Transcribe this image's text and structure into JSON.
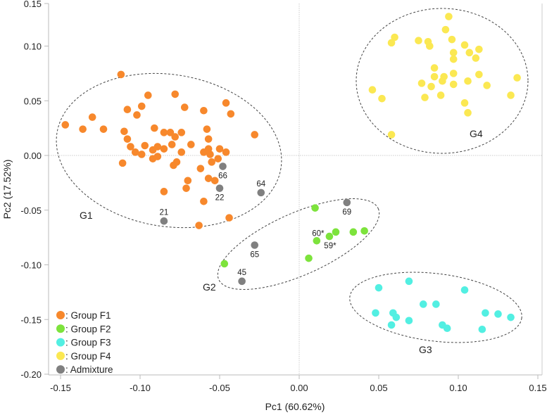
{
  "chart_data": {
    "type": "scatter",
    "title": "",
    "xlabel": "Pc1 (60.62%)",
    "ylabel": "Pc2 (17.52%)",
    "xlim": [
      -0.15,
      0.15
    ],
    "ylim": [
      -0.2,
      0.15
    ],
    "xticks": [
      "-0.15",
      "-0.10",
      "-0.05",
      "0.00",
      "0.05",
      "0.10",
      "0.15"
    ],
    "yticks": [
      "0.15",
      "0.10",
      "0.05",
      "0.00",
      "-0.05",
      "-0.10",
      "-0.15",
      "-0.20"
    ],
    "grid": false,
    "zero_lines": true,
    "legend_placement": "bottom-left",
    "series": [
      {
        "name": ": Group F1",
        "color": "#F7882C",
        "points": [
          [
            -0.112,
            0.074
          ],
          [
            -0.095,
            0.055
          ],
          [
            -0.099,
            0.045
          ],
          [
            -0.108,
            0.042
          ],
          [
            -0.102,
            0.037
          ],
          [
            -0.13,
            0.035
          ],
          [
            -0.147,
            0.028
          ],
          [
            -0.136,
            0.024
          ],
          [
            -0.123,
            0.024
          ],
          [
            -0.11,
            0.022
          ],
          [
            -0.091,
            0.025
          ],
          [
            -0.108,
            0.015
          ],
          [
            -0.097,
            0.009
          ],
          [
            -0.106,
            0.008
          ],
          [
            -0.089,
            0.008
          ],
          [
            -0.103,
            0.003
          ],
          [
            -0.099,
            0.001
          ],
          [
            -0.092,
            0.005
          ],
          [
            -0.092,
            -0.003
          ],
          [
            -0.089,
            -0.001
          ],
          [
            -0.111,
            -0.007
          ],
          [
            -0.078,
            0.056
          ],
          [
            -0.072,
            0.044
          ],
          [
            -0.046,
            0.048
          ],
          [
            -0.06,
            0.041
          ],
          [
            -0.043,
            0.038
          ],
          [
            -0.085,
            0.021
          ],
          [
            -0.081,
            0.021
          ],
          [
            -0.078,
            0.017
          ],
          [
            -0.074,
            0.021
          ],
          [
            -0.058,
            0.024
          ],
          [
            -0.057,
            0.015
          ],
          [
            -0.028,
            0.019
          ],
          [
            -0.085,
            0.006
          ],
          [
            -0.08,
            0.01
          ],
          [
            -0.068,
            0.01
          ],
          [
            -0.074,
            0.003
          ],
          [
            -0.06,
            0.003
          ],
          [
            -0.057,
            0.006
          ],
          [
            -0.056,
            0.001
          ],
          [
            -0.05,
            0.006
          ],
          [
            -0.046,
            0.003
          ],
          [
            -0.051,
            -0.003
          ],
          [
            -0.055,
            -0.006
          ],
          [
            -0.077,
            -0.006
          ],
          [
            -0.079,
            -0.009
          ],
          [
            -0.062,
            -0.012
          ],
          [
            -0.07,
            -0.023
          ],
          [
            -0.071,
            -0.03
          ],
          [
            -0.085,
            -0.033
          ],
          [
            -0.057,
            -0.021
          ],
          [
            -0.053,
            -0.023
          ],
          [
            -0.06,
            -0.042
          ],
          [
            -0.044,
            -0.057
          ],
          [
            -0.063,
            -0.064
          ]
        ]
      },
      {
        "name": ": Group F2",
        "color": "#7DE33C",
        "points": [
          [
            0.01,
            -0.048
          ],
          [
            0.023,
            -0.07
          ],
          [
            0.034,
            -0.07
          ],
          [
            0.041,
            -0.069
          ],
          [
            0.019,
            -0.074
          ],
          [
            0.011,
            -0.078
          ],
          [
            0.006,
            -0.094
          ],
          [
            -0.047,
            -0.099
          ]
        ]
      },
      {
        "name": ": Group F3",
        "color": "#52EFE2",
        "points": [
          [
            0.069,
            -0.115
          ],
          [
            0.05,
            -0.121
          ],
          [
            0.104,
            -0.123
          ],
          [
            0.078,
            -0.136
          ],
          [
            0.086,
            -0.136
          ],
          [
            0.048,
            -0.144
          ],
          [
            0.059,
            -0.144
          ],
          [
            0.061,
            -0.148
          ],
          [
            0.069,
            -0.151
          ],
          [
            0.058,
            -0.155
          ],
          [
            0.09,
            -0.155
          ],
          [
            0.093,
            -0.158
          ],
          [
            0.117,
            -0.144
          ],
          [
            0.125,
            -0.145
          ],
          [
            0.133,
            -0.148
          ],
          [
            0.115,
            -0.159
          ]
        ]
      },
      {
        "name": ": Group F4",
        "color": "#FBE852",
        "points": [
          [
            0.094,
            0.127
          ],
          [
            0.092,
            0.115
          ],
          [
            0.06,
            0.108
          ],
          [
            0.058,
            0.103
          ],
          [
            0.075,
            0.105
          ],
          [
            0.081,
            0.104
          ],
          [
            0.082,
            0.1
          ],
          [
            0.096,
            0.106
          ],
          [
            0.104,
            0.101
          ],
          [
            0.113,
            0.097
          ],
          [
            0.097,
            0.094
          ],
          [
            0.107,
            0.094
          ],
          [
            0.097,
            0.088
          ],
          [
            0.111,
            0.089
          ],
          [
            0.085,
            0.08
          ],
          [
            0.085,
            0.072
          ],
          [
            0.091,
            0.072
          ],
          [
            0.097,
            0.075
          ],
          [
            0.113,
            0.074
          ],
          [
            0.09,
            0.068
          ],
          [
            0.077,
            0.066
          ],
          [
            0.083,
            0.063
          ],
          [
            0.097,
            0.065
          ],
          [
            0.106,
            0.068
          ],
          [
            0.118,
            0.064
          ],
          [
            0.137,
            0.071
          ],
          [
            0.046,
            0.06
          ],
          [
            0.052,
            0.052
          ],
          [
            0.079,
            0.053
          ],
          [
            0.089,
            0.055
          ],
          [
            0.104,
            0.048
          ],
          [
            0.106,
            0.039
          ],
          [
            0.133,
            0.055
          ],
          [
            0.058,
            0.019
          ]
        ]
      },
      {
        "name": ": Admixture",
        "color": "#808080",
        "points": [
          [
            -0.048,
            -0.01
          ],
          [
            -0.05,
            -0.03
          ],
          [
            -0.024,
            -0.034
          ],
          [
            -0.085,
            -0.06
          ],
          [
            0.03,
            -0.043
          ],
          [
            -0.028,
            -0.082
          ],
          [
            -0.036,
            -0.115
          ]
        ]
      }
    ],
    "point_labels": [
      {
        "text": "66",
        "x": -0.048,
        "y": -0.01,
        "pos": "below"
      },
      {
        "text": "22",
        "x": -0.05,
        "y": -0.03,
        "pos": "below"
      },
      {
        "text": "64",
        "x": -0.024,
        "y": -0.034,
        "pos": "above"
      },
      {
        "text": "21",
        "x": -0.085,
        "y": -0.06,
        "pos": "above"
      },
      {
        "text": "69",
        "x": 0.03,
        "y": -0.043,
        "pos": "below"
      },
      {
        "text": "65",
        "x": -0.028,
        "y": -0.082,
        "pos": "below"
      },
      {
        "text": "45",
        "x": -0.036,
        "y": -0.115,
        "pos": "above"
      },
      {
        "text": "60*",
        "x": 0.011,
        "y": -0.078,
        "pos": "above"
      },
      {
        "text": "59*",
        "x": 0.019,
        "y": -0.074,
        "pos": "below"
      }
    ],
    "group_labels": [
      "G1",
      "G2",
      "G3",
      "G4"
    ]
  }
}
